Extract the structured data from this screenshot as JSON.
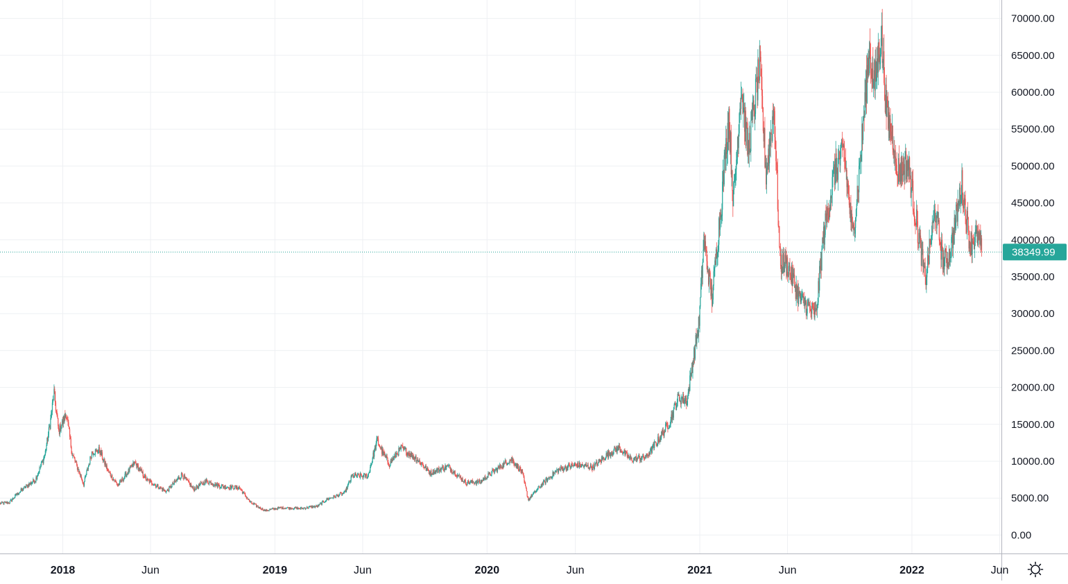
{
  "chart_data": {
    "type": "candlestick",
    "y_axis": {
      "ticks": [
        "70000.00",
        "65000.00",
        "60000.00",
        "55000.00",
        "50000.00",
        "45000.00",
        "40000.00",
        "35000.00",
        "30000.00",
        "25000.00",
        "20000.00",
        "15000.00",
        "10000.00",
        "5000.00",
        "0.00"
      ],
      "range": [
        -2500,
        72500
      ],
      "position": "right"
    },
    "x_axis": {
      "ticks": [
        {
          "label": "2018",
          "date": "2018-01-01",
          "major": true
        },
        {
          "label": "Jun",
          "date": "2018-06-01",
          "major": false
        },
        {
          "label": "2019",
          "date": "2019-01-01",
          "major": true
        },
        {
          "label": "Jun",
          "date": "2019-06-01",
          "major": false
        },
        {
          "label": "2020",
          "date": "2020-01-01",
          "major": true
        },
        {
          "label": "Jun",
          "date": "2020-06-01",
          "major": false
        },
        {
          "label": "2021",
          "date": "2021-01-01",
          "major": true
        },
        {
          "label": "Jun",
          "date": "2021-06-01",
          "major": false
        },
        {
          "label": "2022",
          "date": "2022-01-01",
          "major": true
        },
        {
          "label": "Jun",
          "date": "2022-06-01",
          "major": false
        }
      ],
      "range": [
        "2017-09-15",
        "2022-06-04"
      ]
    },
    "series": [
      {
        "kind": "candlestick",
        "points": [
          {
            "date": "2017-09-15",
            "close": 4300
          },
          {
            "date": "2017-10-01",
            "close": 4400
          },
          {
            "date": "2017-10-15",
            "close": 5600
          },
          {
            "date": "2017-11-01",
            "close": 6700
          },
          {
            "date": "2017-11-15",
            "close": 7500
          },
          {
            "date": "2017-12-01",
            "close": 10800
          },
          {
            "date": "2017-12-10",
            "close": 15000
          },
          {
            "date": "2017-12-17",
            "close": 19300
          },
          {
            "date": "2017-12-25",
            "close": 14000
          },
          {
            "date": "2018-01-07",
            "close": 16500
          },
          {
            "date": "2018-01-17",
            "close": 11000
          },
          {
            "date": "2018-02-06",
            "close": 6900
          },
          {
            "date": "2018-02-20",
            "close": 11200
          },
          {
            "date": "2018-03-05",
            "close": 11500
          },
          {
            "date": "2018-03-20",
            "close": 8600
          },
          {
            "date": "2018-04-06",
            "close": 6700
          },
          {
            "date": "2018-05-05",
            "close": 9800
          },
          {
            "date": "2018-05-25",
            "close": 7500
          },
          {
            "date": "2018-06-28",
            "close": 5900
          },
          {
            "date": "2018-07-25",
            "close": 8200
          },
          {
            "date": "2018-08-14",
            "close": 6200
          },
          {
            "date": "2018-09-05",
            "close": 7300
          },
          {
            "date": "2018-10-01",
            "close": 6600
          },
          {
            "date": "2018-11-01",
            "close": 6400
          },
          {
            "date": "2018-11-20",
            "close": 4400
          },
          {
            "date": "2018-12-15",
            "close": 3300
          },
          {
            "date": "2019-01-10",
            "close": 3700
          },
          {
            "date": "2019-02-15",
            "close": 3600
          },
          {
            "date": "2019-03-15",
            "close": 3900
          },
          {
            "date": "2019-04-02",
            "close": 4900
          },
          {
            "date": "2019-05-01",
            "close": 5700
          },
          {
            "date": "2019-05-14",
            "close": 8000
          },
          {
            "date": "2019-06-10",
            "close": 8000
          },
          {
            "date": "2019-06-26",
            "close": 12900
          },
          {
            "date": "2019-07-05",
            "close": 11200
          },
          {
            "date": "2019-07-17",
            "close": 9600
          },
          {
            "date": "2019-08-06",
            "close": 11800
          },
          {
            "date": "2019-09-01",
            "close": 10400
          },
          {
            "date": "2019-09-25",
            "close": 8400
          },
          {
            "date": "2019-10-26",
            "close": 9300
          },
          {
            "date": "2019-11-25",
            "close": 7100
          },
          {
            "date": "2019-12-20",
            "close": 7200
          },
          {
            "date": "2020-01-15",
            "close": 8800
          },
          {
            "date": "2020-02-12",
            "close": 10300
          },
          {
            "date": "2020-03-01",
            "close": 8500
          },
          {
            "date": "2020-03-12",
            "close": 4800
          },
          {
            "date": "2020-04-01",
            "close": 6600
          },
          {
            "date": "2020-05-01",
            "close": 8800
          },
          {
            "date": "2020-06-01",
            "close": 9500
          },
          {
            "date": "2020-07-01",
            "close": 9200
          },
          {
            "date": "2020-07-28",
            "close": 11000
          },
          {
            "date": "2020-08-15",
            "close": 11800
          },
          {
            "date": "2020-09-05",
            "close": 10200
          },
          {
            "date": "2020-10-01",
            "close": 10600
          },
          {
            "date": "2020-10-21",
            "close": 12800
          },
          {
            "date": "2020-11-10",
            "close": 15300
          },
          {
            "date": "2020-11-25",
            "close": 18600
          },
          {
            "date": "2020-12-10",
            "close": 18200
          },
          {
            "date": "2020-12-20",
            "close": 23500
          },
          {
            "date": "2020-12-31",
            "close": 29000
          },
          {
            "date": "2021-01-08",
            "close": 40000
          },
          {
            "date": "2021-01-22",
            "close": 32000
          },
          {
            "date": "2021-02-08",
            "close": 46000
          },
          {
            "date": "2021-02-20",
            "close": 57000
          },
          {
            "date": "2021-02-28",
            "close": 45000
          },
          {
            "date": "2021-03-13",
            "close": 61000
          },
          {
            "date": "2021-03-25",
            "close": 52000
          },
          {
            "date": "2021-04-14",
            "close": 63500
          },
          {
            "date": "2021-04-25",
            "close": 49000
          },
          {
            "date": "2021-05-09",
            "close": 58000
          },
          {
            "date": "2021-05-19",
            "close": 37000
          },
          {
            "date": "2021-06-01",
            "close": 36500
          },
          {
            "date": "2021-06-22",
            "close": 32000
          },
          {
            "date": "2021-07-20",
            "close": 29800
          },
          {
            "date": "2021-08-01",
            "close": 40000
          },
          {
            "date": "2021-08-20",
            "close": 49000
          },
          {
            "date": "2021-09-06",
            "close": 52000
          },
          {
            "date": "2021-09-21",
            "close": 40500
          },
          {
            "date": "2021-10-01",
            "close": 48000
          },
          {
            "date": "2021-10-20",
            "close": 66000
          },
          {
            "date": "2021-10-28",
            "close": 60500
          },
          {
            "date": "2021-11-09",
            "close": 68000
          },
          {
            "date": "2021-11-19",
            "close": 56500
          },
          {
            "date": "2021-12-03",
            "close": 53000
          },
          {
            "date": "2021-12-04",
            "close": 49000
          },
          {
            "date": "2021-12-25",
            "close": 50500
          },
          {
            "date": "2022-01-10",
            "close": 41800
          },
          {
            "date": "2022-01-24",
            "close": 34500
          },
          {
            "date": "2022-02-10",
            "close": 44000
          },
          {
            "date": "2022-02-24",
            "close": 37000
          },
          {
            "date": "2022-03-07",
            "close": 38000
          },
          {
            "date": "2022-03-28",
            "close": 47500
          },
          {
            "date": "2022-04-11",
            "close": 39500
          },
          {
            "date": "2022-04-25",
            "close": 40500
          },
          {
            "date": "2022-05-01",
            "close": 38349.99
          }
        ]
      }
    ],
    "last_price": {
      "label": "38349.99",
      "value": 38349.99,
      "color": "#26a69a"
    },
    "colors": {
      "up": "#26a69a",
      "down": "#ef5350",
      "grid": "#eef0f3",
      "axis": "#131722"
    },
    "grid": true
  },
  "icons": {
    "settings": "settings-gear-icon"
  }
}
